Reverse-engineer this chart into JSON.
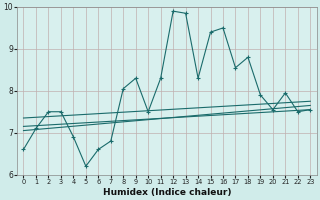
{
  "xlabel": "Humidex (Indice chaleur)",
  "xlim": [
    -0.5,
    23.5
  ],
  "ylim": [
    6,
    10
  ],
  "yticks": [
    6,
    7,
    8,
    9,
    10
  ],
  "xticks": [
    0,
    1,
    2,
    3,
    4,
    5,
    6,
    7,
    8,
    9,
    10,
    11,
    12,
    13,
    14,
    15,
    16,
    17,
    18,
    19,
    20,
    21,
    22,
    23
  ],
  "bg_color": "#d0ecea",
  "plot_bg": "#d8f0ee",
  "line_color": "#1a6b6b",
  "grid_color": "#c0b0b0",
  "series1_x": [
    0,
    1,
    2,
    3,
    4,
    5,
    6,
    7,
    8,
    9,
    10,
    11,
    12,
    13,
    14,
    15,
    16,
    17,
    18,
    19,
    20,
    21,
    22,
    23
  ],
  "series1_y": [
    6.6,
    7.1,
    7.5,
    7.5,
    6.9,
    6.2,
    6.6,
    6.8,
    8.05,
    8.3,
    7.5,
    8.3,
    9.9,
    9.85,
    8.3,
    9.4,
    9.5,
    8.55,
    8.8,
    7.9,
    7.55,
    7.95,
    7.5,
    7.55
  ],
  "trend1_x": [
    0,
    23
  ],
  "trend1_y": [
    7.15,
    7.55
  ],
  "trend2_x": [
    0,
    23
  ],
  "trend2_y": [
    7.35,
    7.75
  ],
  "trend3_x": [
    0,
    23
  ],
  "trend3_y": [
    7.05,
    7.65
  ]
}
